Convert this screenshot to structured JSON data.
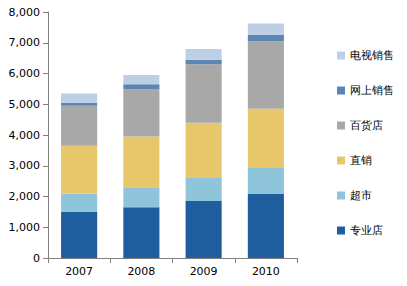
{
  "chart_data": {
    "type": "bar",
    "stacked": true,
    "grid": false,
    "legend": "right",
    "categories": [
      "2007",
      "2008",
      "2009",
      "2010"
    ],
    "series": [
      {
        "name": "专业店",
        "color": "#1f5e9e",
        "values": [
          1500,
          1650,
          1850,
          2080
        ]
      },
      {
        "name": "超市",
        "color": "#8ec5db",
        "values": [
          600,
          650,
          750,
          850
        ]
      },
      {
        "name": "直销",
        "color": "#e8c76a",
        "values": [
          1550,
          1650,
          1800,
          1920
        ]
      },
      {
        "name": "百货店",
        "color": "#a8a8a8",
        "values": [
          1300,
          1550,
          1900,
          2200
        ]
      },
      {
        "name": "网上销售",
        "color": "#5b86b4",
        "values": [
          100,
          150,
          150,
          200
        ]
      },
      {
        "name": "电视销售",
        "color": "#bccfe5",
        "values": [
          300,
          300,
          350,
          380
        ]
      }
    ],
    "ylim": [
      0,
      8000
    ],
    "yticks": [
      0,
      {
        "value": 1000,
        "label": "1,000"
      },
      {
        "value": 2000,
        "label": "2,000"
      },
      {
        "value": 3000,
        "label": "3,000"
      },
      {
        "value": 4000,
        "label": "4,000"
      },
      {
        "value": 5000,
        "label": "5,000"
      },
      {
        "value": 6000,
        "label": "6,000"
      },
      {
        "value": 7000,
        "label": "7,000"
      },
      {
        "value": 8000,
        "label": "8,000"
      }
    ]
  }
}
